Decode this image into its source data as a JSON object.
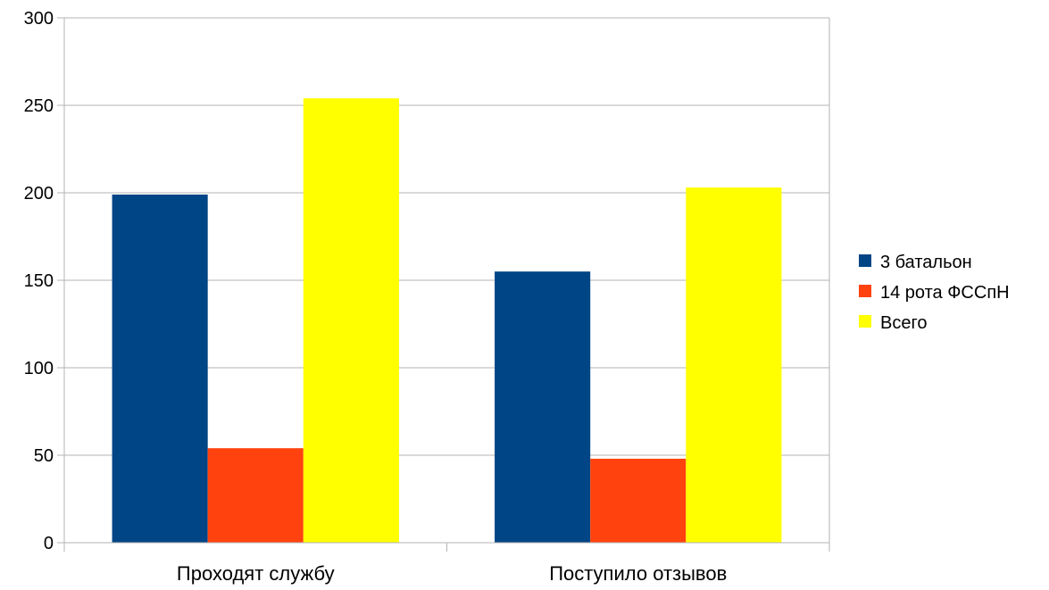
{
  "chart_data": {
    "type": "bar",
    "title": "",
    "xlabel": "",
    "ylabel": "",
    "categories": [
      "Проходят службу",
      "Поступило отзывов"
    ],
    "series": [
      {
        "name": "3 батальон",
        "values": [
          199,
          155
        ],
        "color": "#004586"
      },
      {
        "name": "14 рота ФССпН",
        "values": [
          54,
          48
        ],
        "color": "#ff420e"
      },
      {
        "name": "Всего",
        "values": [
          254,
          203
        ],
        "color": "#ffff00"
      }
    ],
    "ylim": [
      0,
      300
    ],
    "yticks": [
      0,
      50,
      100,
      150,
      200,
      250,
      300
    ],
    "grid": true,
    "legend_position": "right"
  }
}
